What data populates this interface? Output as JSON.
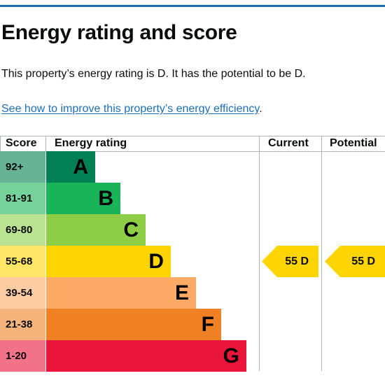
{
  "page": {
    "title": "Energy rating and score",
    "summary": "This property’s energy rating is D. It has the potential to be D.",
    "improve_link": "See how to improve this property’s energy efficiency",
    "improve_link_suffix": "."
  },
  "table": {
    "headers": {
      "score": "Score",
      "rating": "Energy rating",
      "current": "Current",
      "potential": "Potential"
    },
    "bands": [
      {
        "score": "92+",
        "letter": "A",
        "color": "#008054",
        "cell_color": "#66b398"
      },
      {
        "score": "81-91",
        "letter": "B",
        "color": "#19b459",
        "cell_color": "#75d29b"
      },
      {
        "score": "69-80",
        "letter": "C",
        "color": "#8dce46",
        "cell_color": "#bbe290"
      },
      {
        "score": "55-68",
        "letter": "D",
        "color": "#ffd500",
        "cell_color": "#ffe666"
      },
      {
        "score": "39-54",
        "letter": "E",
        "color": "#fcaa65",
        "cell_color": "#fdcca3"
      },
      {
        "score": "21-38",
        "letter": "F",
        "color": "#ef8023",
        "cell_color": "#f5b37b"
      },
      {
        "score": "1-20",
        "letter": "G",
        "color": "#e9153b",
        "cell_color": "#f27389"
      }
    ],
    "current": {
      "label": "55  D",
      "band": "D",
      "color": "#ffd500"
    },
    "potential": {
      "label": "55  D",
      "band": "D",
      "color": "#ffd500"
    }
  }
}
